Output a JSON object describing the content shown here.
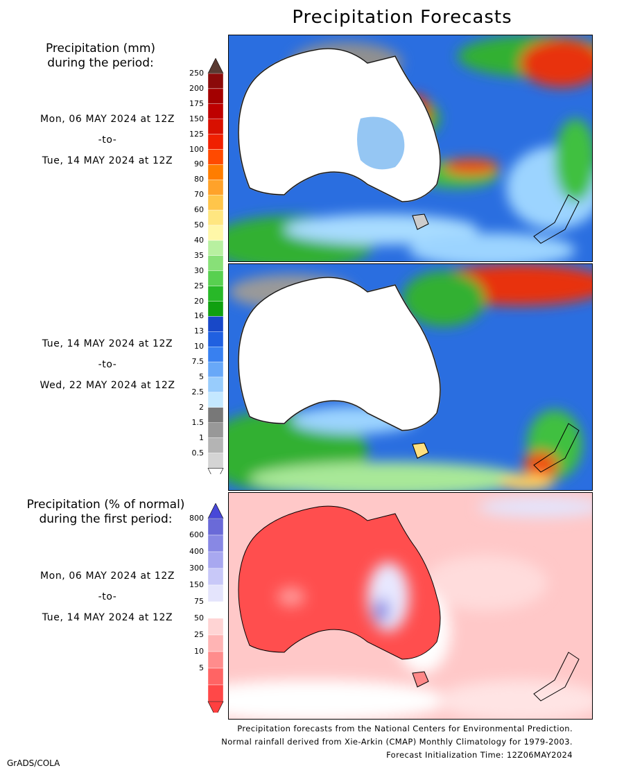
{
  "title": "Precipitation Forecasts",
  "section1": {
    "title_line1": "Precipitation (mm)",
    "title_line2": "during the period:",
    "period1": {
      "start": "Mon, 06 MAY 2024 at 12Z",
      "sep": "-to-",
      "end": "Tue, 14 MAY 2024 at 12Z"
    },
    "period2": {
      "start": "Tue, 14 MAY 2024 at 12Z",
      "sep": "-to-",
      "end": "Wed, 22 MAY 2024 at 12Z"
    },
    "colorbar": {
      "ticks": [
        "250",
        "200",
        "175",
        "150",
        "125",
        "100",
        "90",
        "80",
        "70",
        "60",
        "50",
        "40",
        "35",
        "30",
        "25",
        "20",
        "16",
        "13",
        "10",
        "7.5",
        "5",
        "2.5",
        "2",
        "1.5",
        "1",
        "0.5"
      ],
      "colors": [
        "#8b0a0a",
        "#a30000",
        "#be0000",
        "#d81000",
        "#f02000",
        "#ff4a00",
        "#ff7d00",
        "#ffa22a",
        "#ffc54a",
        "#ffe680",
        "#fff7a8",
        "#b8f0a0",
        "#88e078",
        "#58d050",
        "#28b828",
        "#10a010",
        "#1848c8",
        "#2060e0",
        "#3880f0",
        "#68a8f8",
        "#98ccfc",
        "#c4e8ff",
        "#787878",
        "#989898",
        "#b4b4b4",
        "#d4d4d4"
      ],
      "top_arrow_color": "#5a3a32"
    }
  },
  "section2": {
    "title_line1": "Precipitation (% of normal)",
    "title_line2": "during the first period:",
    "period": {
      "start": "Mon, 06 MAY 2024 at 12Z",
      "sep": "-to-",
      "end": "Tue, 14 MAY 2024 at 12Z"
    },
    "colorbar": {
      "ticks": [
        "800",
        "600",
        "400",
        "300",
        "150",
        "75",
        "50",
        "25",
        "10",
        "5"
      ],
      "colors": [
        "#6a6ad8",
        "#8888e4",
        "#a8a8f0",
        "#c8c8f8",
        "#e4e4fc",
        "#ffffff",
        "#ffd4d4",
        "#ffb4b4",
        "#ff8c8c",
        "#ff6464",
        "#ff4848"
      ],
      "top_arrow_color": "#4848d8"
    }
  },
  "credits": {
    "line1": "Precipitation forecasts from the National Centers for Environmental Prediction.",
    "line2": "Normal rainfall derived from Xie-Arkin (CMAP) Monthly Climatology for 1979-2003.",
    "line3": "Forecast Initialization Time: 12Z06MAY2024"
  },
  "footer": {
    "label": "GrADS/COLA"
  }
}
